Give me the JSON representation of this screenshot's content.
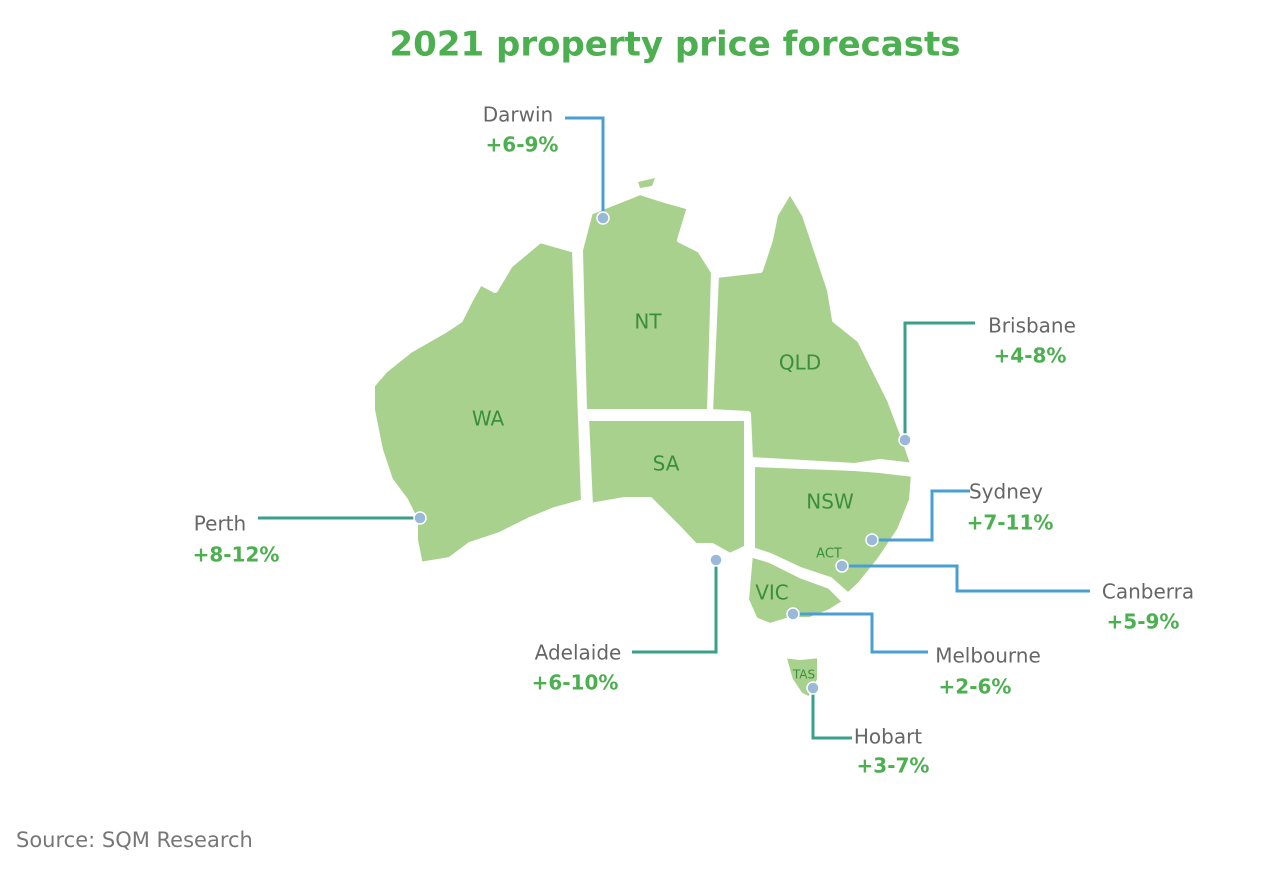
{
  "title": "2021 property price forecasts",
  "states": [
    "WA",
    "NT",
    "SA",
    "QLD",
    "NSW",
    "ACT",
    "VIC",
    "TAS"
  ],
  "cities": [
    {
      "name": "Darwin",
      "forecast": "+6-9%"
    },
    {
      "name": "Brisbane",
      "forecast": "+4-8%"
    },
    {
      "name": "Perth",
      "forecast": "+8-12%"
    },
    {
      "name": "Sydney",
      "forecast": "+7-11%"
    },
    {
      "name": "Canberra",
      "forecast": "+5-9%"
    },
    {
      "name": "Adelaide",
      "forecast": "+6-10%"
    },
    {
      "name": "Melbourne",
      "forecast": "+2-6%"
    },
    {
      "name": "Hobart",
      "forecast": "+3-7%"
    }
  ],
  "source": "Source: SQM Research"
}
